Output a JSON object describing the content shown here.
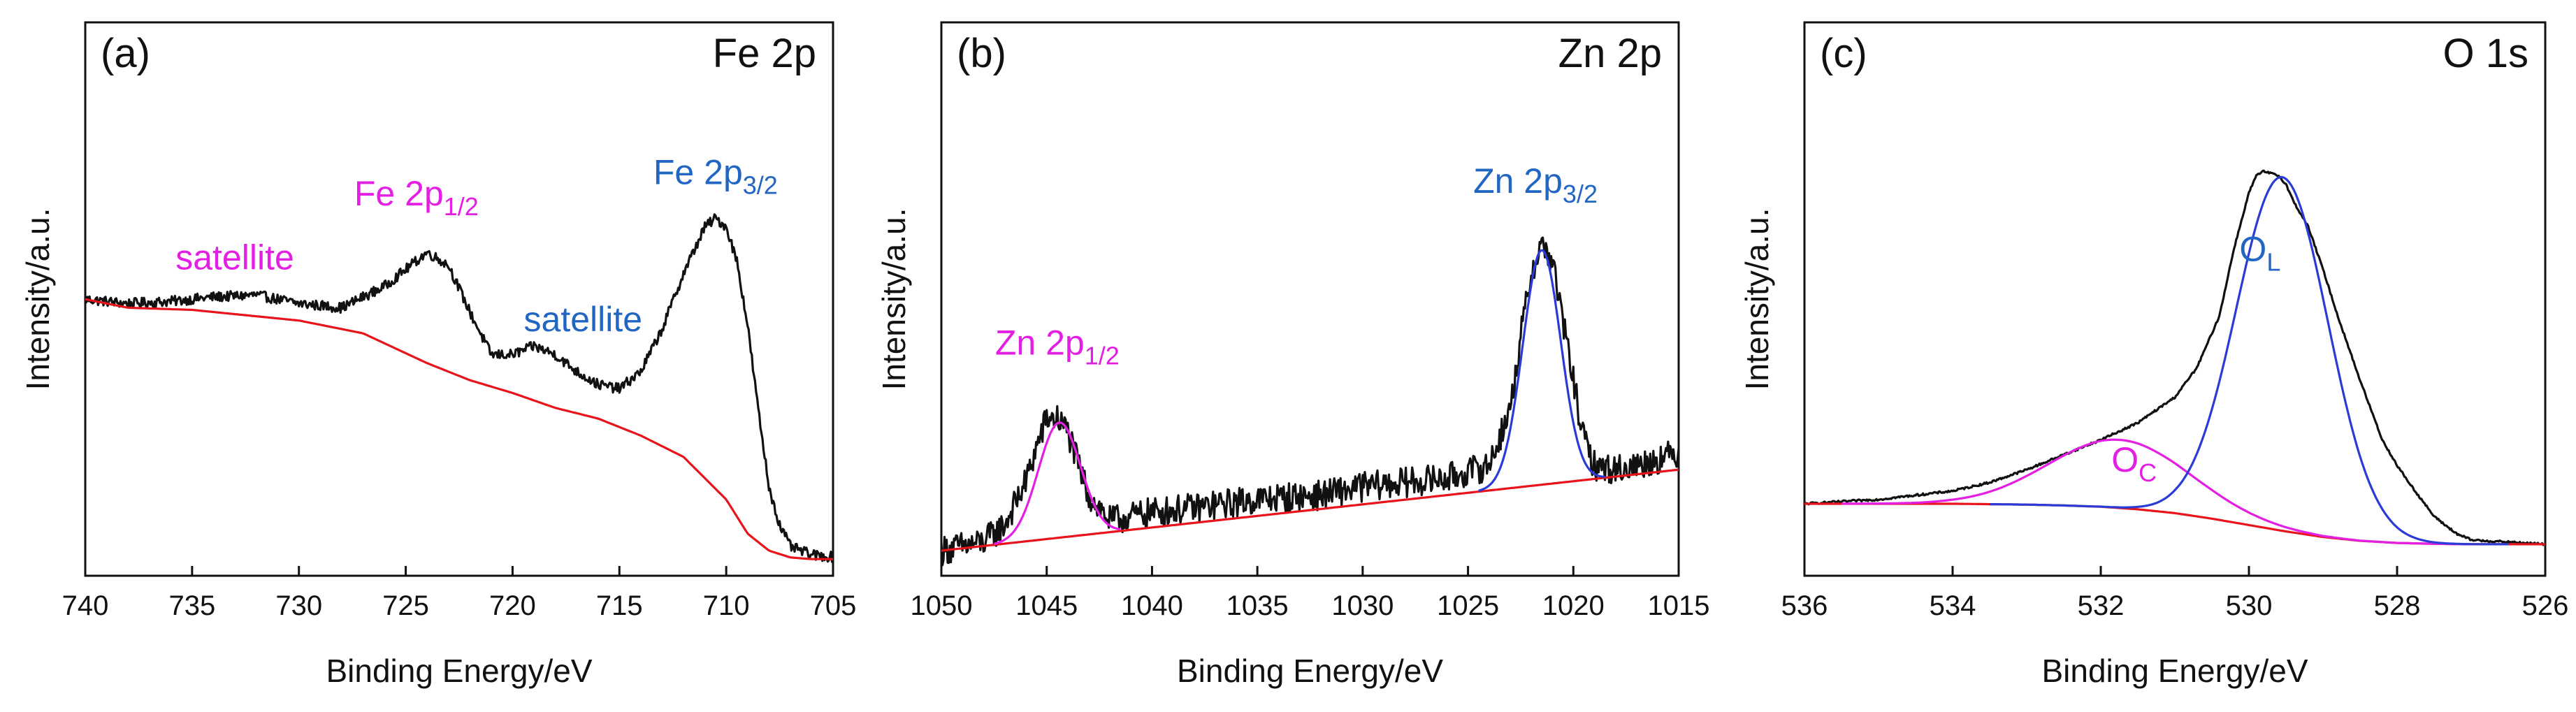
{
  "chart_data": [
    {
      "id": "a",
      "type": "line",
      "panel_label": "(a)",
      "title": "Fe 2p",
      "xlabel": "Binding Energy/eV",
      "ylabel": "Intensity/a.u.",
      "xlim": [
        740,
        705
      ],
      "ylim": [
        0,
        100
      ],
      "xticks": [
        740,
        735,
        730,
        725,
        720,
        715,
        710,
        705
      ],
      "yticks": [],
      "grid": false,
      "colors": {
        "measured": "#111111",
        "background": "#e8141b"
      },
      "series": [
        {
          "name": "measured",
          "color": "#111111",
          "noise": 1.2,
          "x": [
            740,
            738,
            736,
            734,
            732,
            730,
            728,
            726,
            725,
            724,
            723,
            722,
            721,
            720,
            719,
            718,
            717,
            716,
            715,
            714,
            713,
            712,
            711,
            710.5,
            710,
            709.5,
            709,
            708.5,
            708,
            707.5,
            707,
            706,
            705
          ],
          "y": [
            61,
            60,
            60.5,
            61.5,
            62,
            60,
            59,
            64,
            68,
            72,
            69,
            58,
            48,
            48,
            50,
            48,
            44,
            41,
            40,
            44,
            54,
            67,
            78,
            80,
            78,
            70,
            55,
            35,
            17,
            8,
            3,
            1,
            0.5
          ]
        },
        {
          "name": "background",
          "color": "#e8141b",
          "noise": 0,
          "x": [
            740,
            738,
            735,
            730,
            727,
            724,
            722,
            720,
            718,
            716,
            714,
            712,
            710,
            709,
            708,
            707,
            706,
            705
          ],
          "y": [
            61,
            59,
            58.5,
            56,
            53,
            46,
            42,
            39,
            35.5,
            33,
            29,
            24,
            14,
            6,
            2,
            0.4,
            0,
            0
          ]
        }
      ],
      "annotations": [
        {
          "text": "satellite",
          "sub": "",
          "x": 733,
          "y": 68,
          "color": "#e31fe3"
        },
        {
          "text": "Fe 2p",
          "sub": "1/2",
          "x": 724.5,
          "y": 83,
          "color": "#e31fe3"
        },
        {
          "text": "satellite",
          "sub": "",
          "x": 716.7,
          "y": 53.5,
          "color": "#2266c4"
        },
        {
          "text": "Fe 2p",
          "sub": "3/2",
          "x": 710.5,
          "y": 88,
          "color": "#2266c4"
        }
      ]
    },
    {
      "id": "b",
      "type": "line",
      "panel_label": "(b)",
      "title": "Zn 2p",
      "xlabel": "Binding Energy/eV",
      "ylabel": "Intensity/a.u.",
      "xlim": [
        1050,
        1015
      ],
      "ylim": [
        0,
        100
      ],
      "xticks": [
        1050,
        1045,
        1040,
        1035,
        1030,
        1025,
        1020,
        1015
      ],
      "yticks": [],
      "grid": false,
      "colors": {
        "measured": "#111111",
        "background": "#e8141b",
        "fit_1/2": "#e31fe3",
        "fit_3/2": "#2a3bd6"
      },
      "series": [
        {
          "name": "measured",
          "color": "#111111",
          "noise": 3.5,
          "x": [
            1050,
            1048,
            1047,
            1046,
            1045.5,
            1045,
            1044.5,
            1044,
            1043.5,
            1043,
            1042,
            1041,
            1040,
            1038,
            1035,
            1032,
            1030,
            1028,
            1026,
            1024,
            1023,
            1022.5,
            1022,
            1021.5,
            1021,
            1020.5,
            1020,
            1019.5,
            1019,
            1018,
            1017,
            1015
          ],
          "y": [
            2,
            4,
            8,
            18,
            26,
            33,
            33,
            30,
            22,
            15,
            9,
            10,
            11,
            12,
            14,
            15,
            17,
            18,
            19,
            22,
            35,
            52,
            67,
            74,
            70,
            56,
            42,
            28,
            22,
            21,
            22,
            25
          ]
        },
        {
          "name": "background",
          "color": "#e8141b",
          "noise": 0,
          "x": [
            1050,
            1015
          ],
          "y": [
            2,
            21
          ]
        },
        {
          "name": "fit Zn 2p1/2",
          "color": "#e31fe3",
          "noise": 0,
          "fn": "gauss",
          "base": [
            2,
            21
          ],
          "center": 1044.4,
          "height": 27,
          "sigma": 1.0,
          "xrange": [
            1047.5,
            1041.5
          ]
        },
        {
          "name": "fit Zn 2p3/2",
          "color": "#2a3bd6",
          "noise": 0,
          "fn": "gauss",
          "base": [
            2,
            21
          ],
          "center": 1021.5,
          "height": 55,
          "sigma": 0.9,
          "xrange": [
            1024.5,
            1018.5
          ]
        }
      ],
      "annotations": [
        {
          "text": "Zn 2p",
          "sub": "1/2",
          "x": 1044.5,
          "y": 48,
          "color": "#e31fe3"
        },
        {
          "text": "Zn 2p",
          "sub": "3/2",
          "x": 1021.8,
          "y": 86,
          "color": "#2266c4"
        }
      ]
    },
    {
      "id": "c",
      "type": "line",
      "panel_label": "(c)",
      "title": "O 1s",
      "xlabel": "Binding Energy/eV",
      "ylabel": "Intensity/a.u.",
      "xlim": [
        536,
        526
      ],
      "ylim": [
        0,
        100
      ],
      "xticks": [
        536,
        534,
        532,
        530,
        528,
        526
      ],
      "yticks": [],
      "grid": false,
      "colors": {
        "measured": "#111111",
        "background": "#e8141b",
        "O_C": "#e31fe3",
        "O_L": "#2a3bd6"
      },
      "series": [
        {
          "name": "measured",
          "color": "#111111",
          "noise": 0.25,
          "x": [
            536,
            535.5,
            535,
            534.5,
            534,
            533.5,
            533,
            532.5,
            532,
            531.5,
            531,
            530.7,
            530.4,
            530.2,
            530,
            529.9,
            529.8,
            529.7,
            529.6,
            529.5,
            529.4,
            529.2,
            529,
            528.8,
            528.5,
            528.2,
            528,
            527.8,
            527.5,
            527.2,
            527,
            526.5,
            526
          ],
          "y": [
            13,
            13.5,
            14,
            15,
            16,
            18,
            21,
            24.5,
            28,
            32,
            38,
            45,
            57,
            73,
            86,
            90,
            91,
            90.5,
            90,
            88,
            84,
            78,
            68,
            57,
            42,
            28,
            22,
            17,
            10,
            6,
            4.5,
            4,
            3.5
          ]
        },
        {
          "name": "background",
          "color": "#e8141b",
          "noise": 0,
          "x": [
            536,
            535,
            534,
            533,
            532.5,
            532,
            531.5,
            531,
            530.5,
            530,
            529.5,
            529,
            528.5,
            528,
            527.5,
            527,
            526.5,
            526
          ],
          "y": [
            13,
            13,
            13,
            12.8,
            12.6,
            12.3,
            11.7,
            10.8,
            9.5,
            8,
            6.5,
            5.2,
            4.3,
            3.8,
            3.6,
            3.5,
            3.5,
            3.5
          ]
        },
        {
          "name": "O_C",
          "color": "#e31fe3",
          "noise": 0,
          "fn": "gauss",
          "base_curve": "background",
          "center": 531.75,
          "height": 16,
          "sigma": 0.95,
          "xrange": [
            535.5,
            527
          ]
        },
        {
          "name": "O_L",
          "color": "#2a3bd6",
          "noise": 0,
          "fn": "gauss",
          "base_curve": "background",
          "center": 529.55,
          "height": 83,
          "sigma": 0.62,
          "xrange": [
            533.5,
            526.5
          ]
        }
      ],
      "annotations": [
        {
          "text": "O",
          "sub": "C",
          "x": 531.55,
          "y": 20.5,
          "color": "#e31fe3"
        },
        {
          "text": "O",
          "sub": "L",
          "x": 529.85,
          "y": 70,
          "color": "#2266c4"
        }
      ]
    }
  ]
}
